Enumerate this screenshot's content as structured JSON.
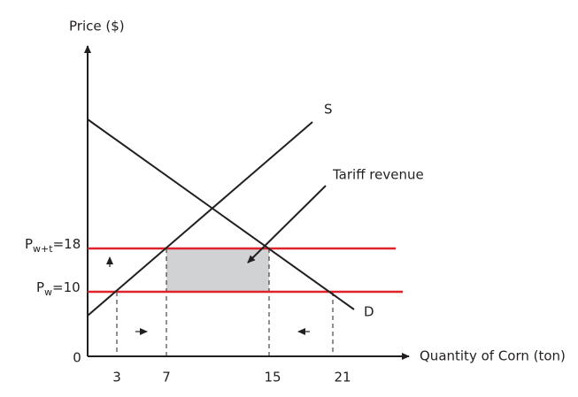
{
  "axes": {
    "y_label": "Price ($)",
    "x_label": "Quantity of Corn (ton)",
    "origin": "0"
  },
  "price_lines": [
    {
      "symbol": "P",
      "subscript": "w+t",
      "suffix": "=18"
    },
    {
      "symbol": "P",
      "subscript": "w",
      "suffix": "=10"
    }
  ],
  "x_ticks": [
    3,
    7,
    15,
    21
  ],
  "curves": {
    "supply": "S",
    "demand": "D"
  },
  "annotation": "Tariff revenue"
}
